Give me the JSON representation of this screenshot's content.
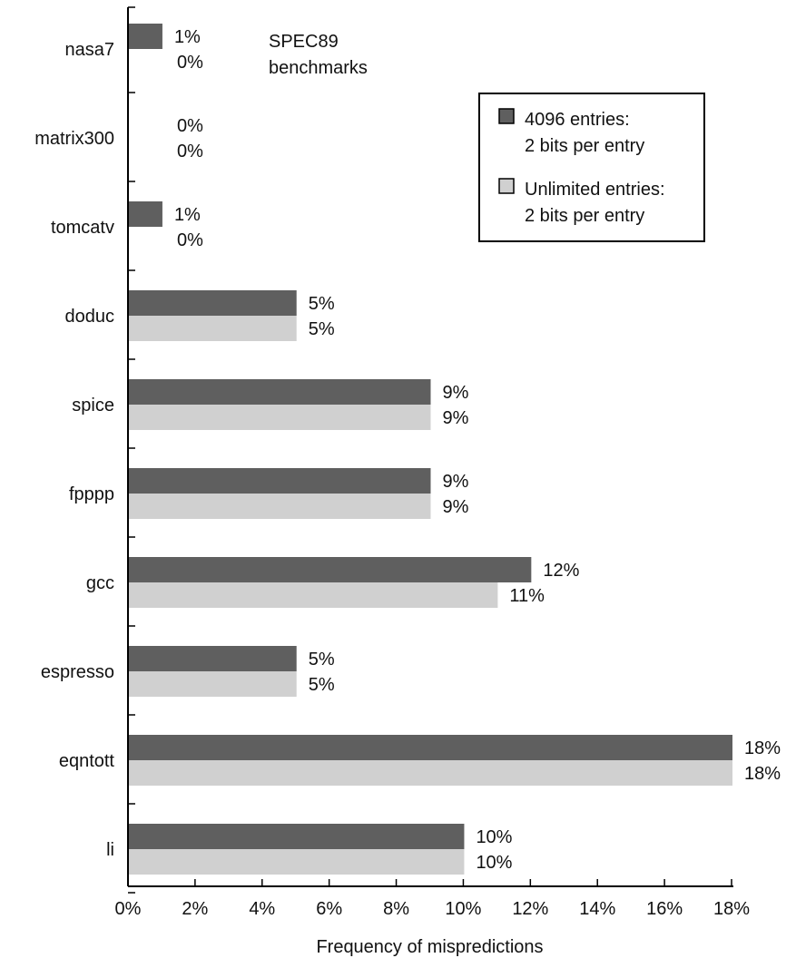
{
  "chart_data": {
    "type": "bar",
    "orientation": "horizontal",
    "categories": [
      "nasa7",
      "matrix300",
      "tomcatv",
      "doduc",
      "spice",
      "fpppp",
      "gcc",
      "espresso",
      "eqntott",
      "li"
    ],
    "series": [
      {
        "name": "4096 entries: 2 bits per entry",
        "legend_lines": [
          "4096 entries:",
          "2 bits per entry"
        ],
        "color": "#5f5f5f",
        "values": [
          1,
          0,
          1,
          5,
          9,
          9,
          12,
          5,
          18,
          10
        ],
        "labels": [
          "1%",
          "0%",
          "1%",
          "5%",
          "9%",
          "9%",
          "12%",
          "5%",
          "18%",
          "10%"
        ]
      },
      {
        "name": "Unlimited entries: 2 bits per entry",
        "legend_lines": [
          "Unlimited entries:",
          "2 bits per entry"
        ],
        "color": "#d0d0d0",
        "values": [
          0,
          0,
          0,
          5,
          9,
          9,
          11,
          5,
          18,
          10
        ],
        "labels": [
          "0%",
          "0%",
          "0%",
          "5%",
          "9%",
          "9%",
          "11%",
          "5%",
          "18%",
          "10%"
        ]
      }
    ],
    "annotation_lines": [
      "SPEC89",
      "benchmarks"
    ],
    "xlabel": "Frequency of mispredictions",
    "xlim": [
      0,
      18
    ],
    "xticks": [
      0,
      2,
      4,
      6,
      8,
      10,
      12,
      14,
      16,
      18
    ],
    "xtick_labels": [
      "0%",
      "2%",
      "4%",
      "6%",
      "8%",
      "10%",
      "12%",
      "14%",
      "16%",
      "18%"
    ],
    "grid": false,
    "legend_position": "top-right"
  }
}
